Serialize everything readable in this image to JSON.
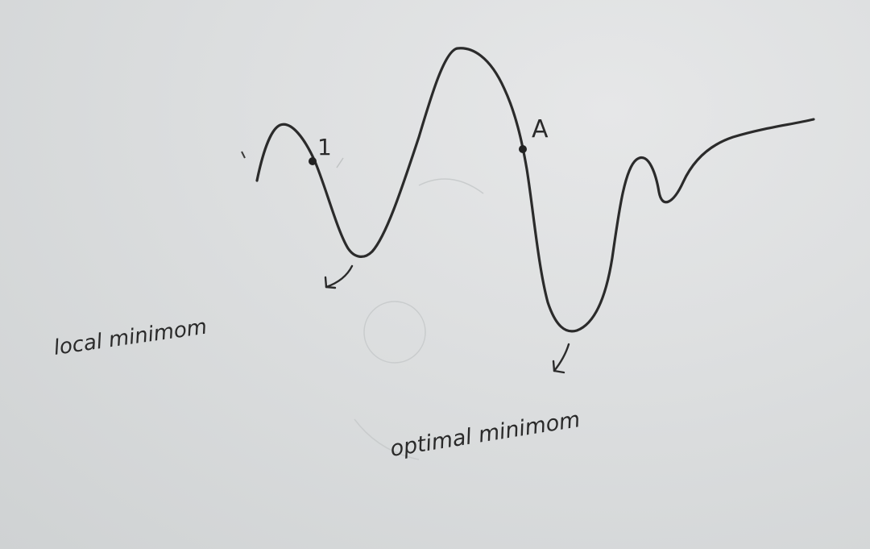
{
  "title": "",
  "labels": {
    "point_1": "1",
    "point_a": "A",
    "local_minimum": "local minimom",
    "optimal_minimum": "optimal minimom"
  },
  "colors": {
    "paper": "#dcdedf",
    "ink": "#2a2a2a",
    "pencil_ghost": "#c7cacb"
  },
  "annotations": [
    {
      "id": "local-minimum",
      "marks": "left valley",
      "arrow": "points to valley from below-left"
    },
    {
      "id": "optimal-minimum",
      "marks": "deepest valley",
      "arrow": "points up to valley"
    }
  ]
}
